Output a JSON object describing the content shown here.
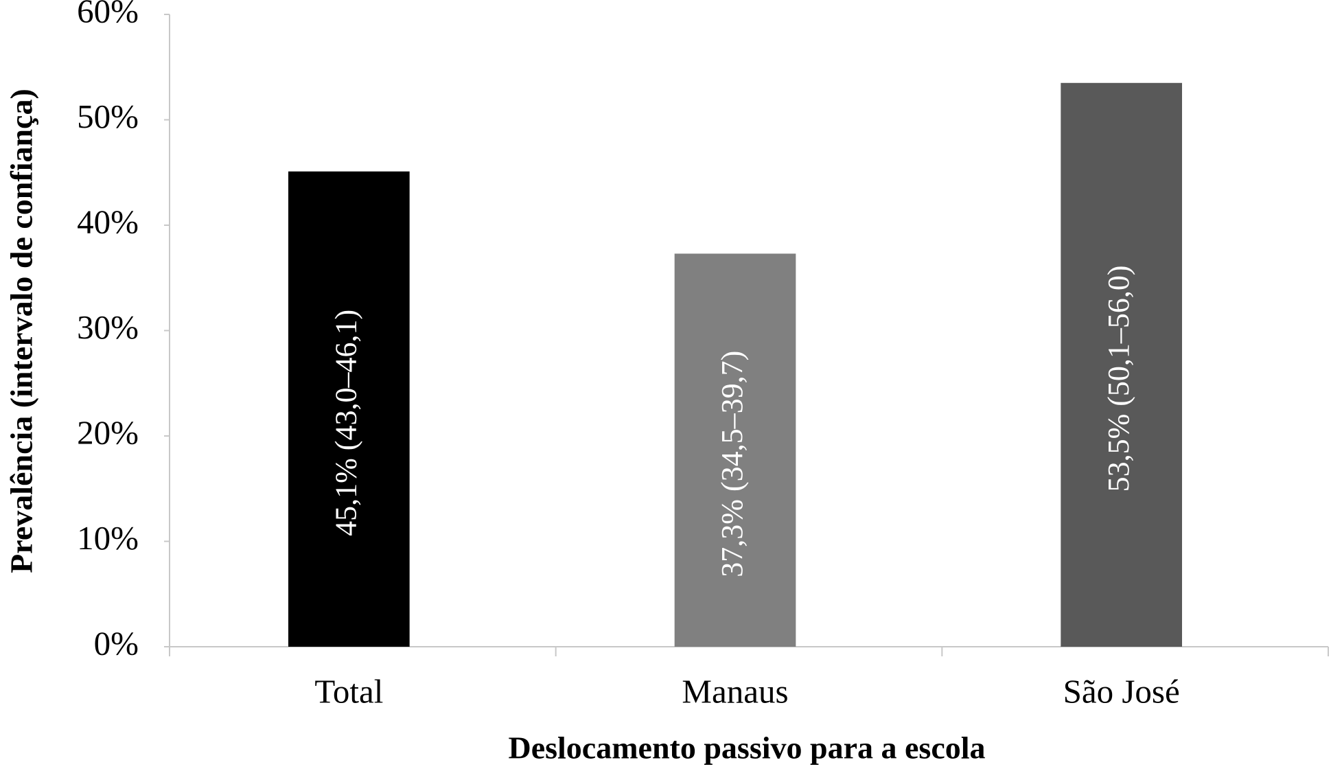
{
  "chart_data": {
    "type": "bar",
    "x_label": "Deslocamento passivo para a escola",
    "y_label": "Prevalência (intervalo de confiança)",
    "categories": [
      "Total",
      "Manaus",
      "São José"
    ],
    "values": [
      45.1,
      37.3,
      53.5
    ],
    "value_labels": [
      "45,1% (43,0–46,1)",
      "37,3% (34,5–39,7)",
      "53,5% (50,1–56,0)"
    ],
    "colors": [
      "#000000",
      "#808080",
      "#595959"
    ],
    "ylim": [
      0,
      60
    ],
    "yticks": [
      {
        "value": 0,
        "label": "0%"
      },
      {
        "value": 10,
        "label": "10%"
      },
      {
        "value": 20,
        "label": "20%"
      },
      {
        "value": 30,
        "label": "30%"
      },
      {
        "value": 40,
        "label": "40%"
      },
      {
        "value": 50,
        "label": "50%"
      },
      {
        "value": 60,
        "label": "60%"
      }
    ],
    "grid": false
  }
}
